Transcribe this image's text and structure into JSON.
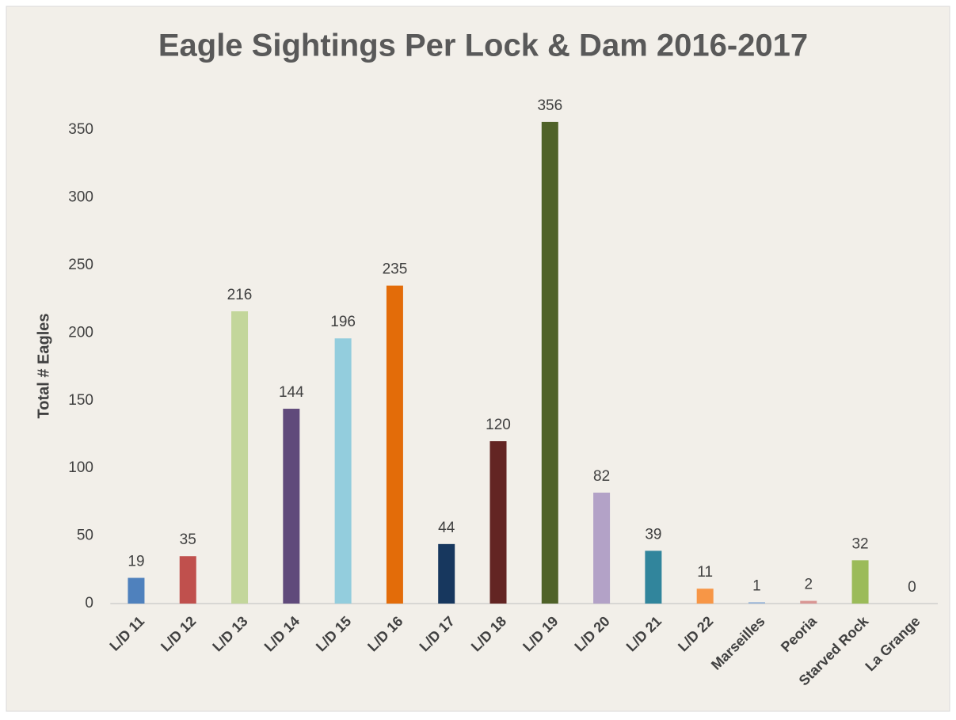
{
  "chart_data": {
    "type": "bar",
    "title": "Eagle Sightings Per Lock & Dam 2016-2017",
    "ylabel": "Total # Eagles",
    "categories": [
      "L/D 11",
      "L/D 12",
      "L/D 13",
      "L/D 14",
      "L/D 15",
      "L/D 16",
      "L/D 17",
      "L/D 18",
      "L/D 19",
      "L/D 20",
      "L/D 21",
      "L/D 22",
      "Marseilles",
      "Peoria",
      "Starved Rock",
      "La Grange"
    ],
    "values": [
      19,
      35,
      216,
      144,
      196,
      235,
      44,
      120,
      356,
      82,
      39,
      11,
      1,
      2,
      32,
      0
    ],
    "colors": [
      "#4f81bd",
      "#c0504d",
      "#c3d69b",
      "#604a7b",
      "#93cddd",
      "#e36c09",
      "#17375e",
      "#632523",
      "#4f6228",
      "#b3a2c7",
      "#31859c",
      "#f79646",
      "#95b3d7",
      "#d99694",
      "#9bbb59",
      "#8064a2"
    ],
    "ylim": [
      0,
      370
    ],
    "yticks": [
      0,
      50,
      100,
      150,
      200,
      250,
      300,
      350
    ],
    "grid": false
  }
}
